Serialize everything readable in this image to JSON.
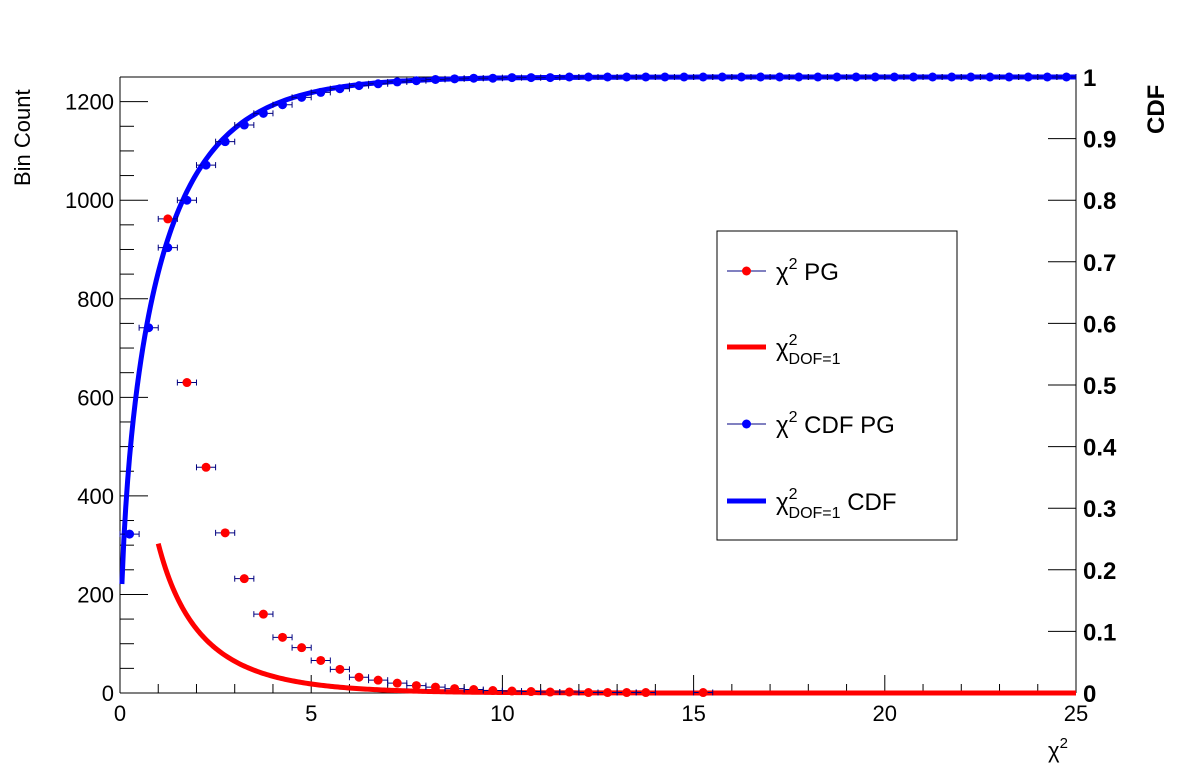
{
  "chart_data": {
    "type": "line",
    "title": "",
    "xlabel": "χ",
    "xlabel_sup": "2",
    "ylabel": "Bin Count",
    "y2label": "CDF",
    "xlim": [
      0,
      25
    ],
    "ylim": [
      0,
      1250
    ],
    "y2lim": [
      0,
      1
    ],
    "x_ticks": [
      "0",
      "5",
      "10",
      "15",
      "20",
      "25"
    ],
    "y_ticks": [
      "0",
      "200",
      "400",
      "600",
      "800",
      "1000",
      "1200"
    ],
    "y2_ticks": [
      "0",
      "0.1",
      "0.2",
      "0.3",
      "0.4",
      "0.5",
      "0.6",
      "0.7",
      "0.8",
      "0.9",
      "1"
    ],
    "grid": false,
    "legend": {
      "position": "center-right",
      "entries": [
        {
          "symbol": "χ",
          "sup": "2",
          "sub": "",
          "suffix": "PG",
          "style": "marker",
          "color": "#ff0000"
        },
        {
          "symbol": "χ",
          "sup": "2",
          "sub": "DOF=1",
          "suffix": "",
          "style": "line",
          "color": "#ff0000"
        },
        {
          "symbol": "χ",
          "sup": "2",
          "sub": "",
          "suffix": "CDF PG",
          "style": "marker",
          "color": "#0000ff"
        },
        {
          "symbol": "χ",
          "sup": "2",
          "sub": "DOF=1",
          "suffix": "CDF",
          "style": "line",
          "color": "#0000ff"
        }
      ]
    },
    "series": [
      {
        "name": "χ2 PG",
        "axis": "left",
        "style": "marker",
        "color": "#ff0000",
        "x_err": 0.25,
        "points": [
          [
            1.25,
            962
          ],
          [
            1.75,
            630
          ],
          [
            2.25,
            458
          ],
          [
            2.75,
            325
          ],
          [
            3.25,
            232
          ],
          [
            3.75,
            160
          ],
          [
            4.25,
            113
          ],
          [
            4.75,
            92
          ],
          [
            5.25,
            66
          ],
          [
            5.75,
            48
          ],
          [
            6.25,
            32
          ],
          [
            6.75,
            26
          ],
          [
            7.25,
            20
          ],
          [
            7.75,
            15
          ],
          [
            8.25,
            12
          ],
          [
            8.75,
            9
          ],
          [
            9.25,
            7
          ],
          [
            9.75,
            5
          ],
          [
            10.25,
            4
          ],
          [
            10.75,
            3
          ],
          [
            11.25,
            2
          ],
          [
            11.75,
            2
          ],
          [
            12.25,
            1
          ],
          [
            12.75,
            1
          ],
          [
            13.25,
            1
          ],
          [
            13.75,
            1
          ],
          [
            15.25,
            1
          ]
        ]
      },
      {
        "name": "χ2 DOF=1",
        "axis": "left",
        "style": "line",
        "color": "#ff0000",
        "function": "chi2_pdf_dof1",
        "scale": 1253,
        "xrange": [
          1.0,
          25
        ]
      },
      {
        "name": "χ2 CDF PG",
        "axis": "right",
        "style": "marker",
        "color": "#0000ff",
        "x_err": 0.25,
        "points": [
          [
            0.25,
            0.258
          ],
          [
            0.75,
            0.593
          ],
          [
            1.25,
            0.723
          ],
          [
            1.75,
            0.8
          ],
          [
            2.25,
            0.857
          ],
          [
            2.75,
            0.895
          ],
          [
            3.25,
            0.922
          ],
          [
            3.75,
            0.941
          ],
          [
            4.25,
            0.955
          ],
          [
            4.75,
            0.967
          ],
          [
            5.25,
            0.975
          ],
          [
            5.75,
            0.981
          ],
          [
            6.25,
            0.986
          ],
          [
            6.75,
            0.989
          ],
          [
            7.25,
            0.992
          ],
          [
            7.75,
            0.994
          ],
          [
            8.25,
            0.996
          ],
          [
            8.75,
            0.997
          ],
          [
            9.25,
            0.998
          ],
          [
            9.75,
            0.998
          ],
          [
            10.25,
            0.999
          ],
          [
            10.75,
            0.999
          ],
          [
            11.25,
            0.999
          ],
          [
            11.75,
            1.0
          ],
          [
            12.25,
            1.0
          ],
          [
            12.75,
            1.0
          ],
          [
            13.25,
            1.0
          ],
          [
            13.75,
            1.0
          ],
          [
            14.25,
            1.0
          ],
          [
            14.75,
            1.0
          ],
          [
            15.25,
            1.0
          ],
          [
            15.75,
            1.0
          ],
          [
            16.25,
            1.0
          ],
          [
            16.75,
            1.0
          ],
          [
            17.25,
            1.0
          ],
          [
            17.75,
            1.0
          ],
          [
            18.25,
            1.0
          ],
          [
            18.75,
            1.0
          ],
          [
            19.25,
            1.0
          ],
          [
            19.75,
            1.0
          ],
          [
            20.25,
            1.0
          ],
          [
            20.75,
            1.0
          ],
          [
            21.25,
            1.0
          ],
          [
            21.75,
            1.0
          ],
          [
            22.25,
            1.0
          ],
          [
            22.75,
            1.0
          ],
          [
            23.25,
            1.0
          ],
          [
            23.75,
            1.0
          ],
          [
            24.25,
            1.0
          ],
          [
            24.75,
            1.0
          ]
        ]
      },
      {
        "name": "χ2 DOF=1 CDF",
        "axis": "right",
        "style": "line",
        "color": "#0000ff",
        "function": "chi2_cdf_dof1",
        "xrange": [
          0.05,
          25
        ]
      }
    ]
  }
}
